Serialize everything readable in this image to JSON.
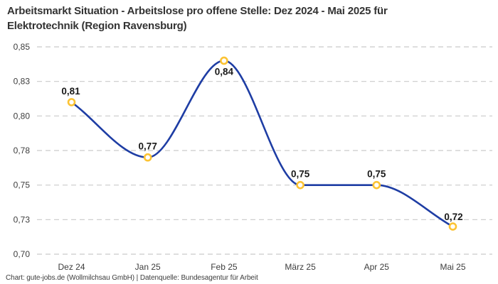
{
  "title_lines": [
    "Arbeitsmarkt Situation - Arbeitslose pro offene Stelle: Dez 2024 - Mai 2025 für",
    "Elektrotechnik (Region Ravensburg)"
  ],
  "footer": "Chart: gute-jobs.de (Wollmilchsau GmbH) | Datenquelle: Bundesagentur für Arbeit",
  "chart_data": {
    "type": "line",
    "title": "Arbeitsmarkt Situation - Arbeitslose pro offene Stelle: Dez 2024 - Mai 2025 für Elektrotechnik (Region Ravensburg)",
    "categories": [
      "Dez 24",
      "Jan 25",
      "Feb 25",
      "März 25",
      "Apr 25",
      "Mai 25"
    ],
    "values": [
      0.81,
      0.77,
      0.84,
      0.75,
      0.75,
      0.72
    ],
    "value_labels": [
      "0,81",
      "0,77",
      "0,84",
      "0,75",
      "0,75",
      "0,72"
    ],
    "xlabel": "",
    "ylabel": "",
    "ylim": [
      0.7,
      0.85
    ],
    "y_ticks": [
      0.85,
      0.825,
      0.8,
      0.775,
      0.75,
      0.725,
      0.7
    ],
    "y_tick_labels": [
      "0,85",
      "0,83",
      "0,80",
      "0,78",
      "0,75",
      "0,73",
      "0,70"
    ],
    "grid": "horizontal-dashed",
    "legend": "none",
    "curve": "monotone",
    "colors": {
      "line": "#1e3da4",
      "marker_stroke": "#fcc334",
      "marker_fill": "#ffffff",
      "grid": "#c9c9c9",
      "axis_text": "#3d3d3d",
      "value_label": "#1a1a1a",
      "title": "#333333"
    }
  }
}
